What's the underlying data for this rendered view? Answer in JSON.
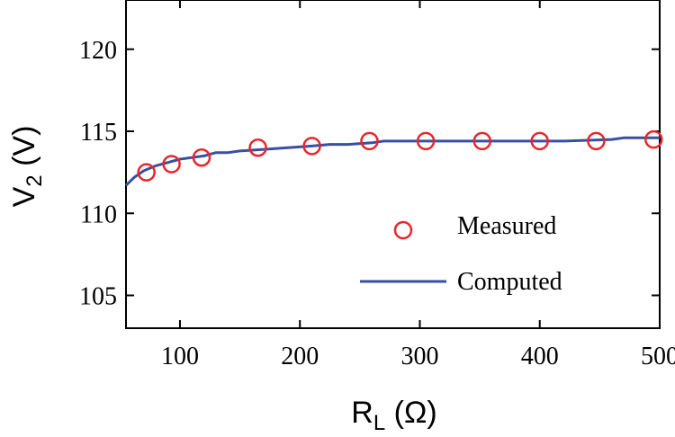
{
  "chart_data": {
    "type": "line",
    "title": "",
    "xlabel": {
      "main": "R",
      "sub": "L",
      "suffix": " (Ω)"
    },
    "ylabel": {
      "main": "V",
      "sub": "2",
      "suffix": " (V)"
    },
    "xlim": [
      55,
      500
    ],
    "ylim": [
      103,
      123
    ],
    "xticks": [
      100,
      200,
      300,
      400,
      500
    ],
    "yticks": [
      105,
      110,
      115,
      120
    ],
    "grid": false,
    "legend_position": "lower-right",
    "series": [
      {
        "name": "Measured",
        "marker": "circle",
        "color": "#e8262a",
        "x": [
          72,
          93,
          118,
          165,
          210,
          258,
          305,
          352,
          400,
          447,
          495
        ],
        "y": [
          112.5,
          113.0,
          113.4,
          114.0,
          114.1,
          114.4,
          114.4,
          114.4,
          114.4,
          114.4,
          114.5
        ]
      },
      {
        "name": "Computed",
        "marker": "line",
        "color": "#3a4fa3",
        "x": [
          55,
          62,
          70,
          80,
          90,
          100,
          110,
          120,
          130,
          140,
          150,
          170,
          190,
          210,
          225,
          240,
          260,
          270,
          300,
          340,
          380,
          420,
          460,
          470,
          500
        ],
        "y": [
          111.7,
          112.2,
          112.6,
          112.9,
          113.1,
          113.3,
          113.4,
          113.5,
          113.7,
          113.7,
          113.8,
          113.9,
          114.0,
          114.1,
          114.2,
          114.2,
          114.3,
          114.4,
          114.4,
          114.4,
          114.4,
          114.4,
          114.5,
          114.6,
          114.6
        ]
      }
    ],
    "colors": {
      "axis": "#000000",
      "measured": "#e8262a",
      "computed": "#3a4fa3"
    }
  }
}
